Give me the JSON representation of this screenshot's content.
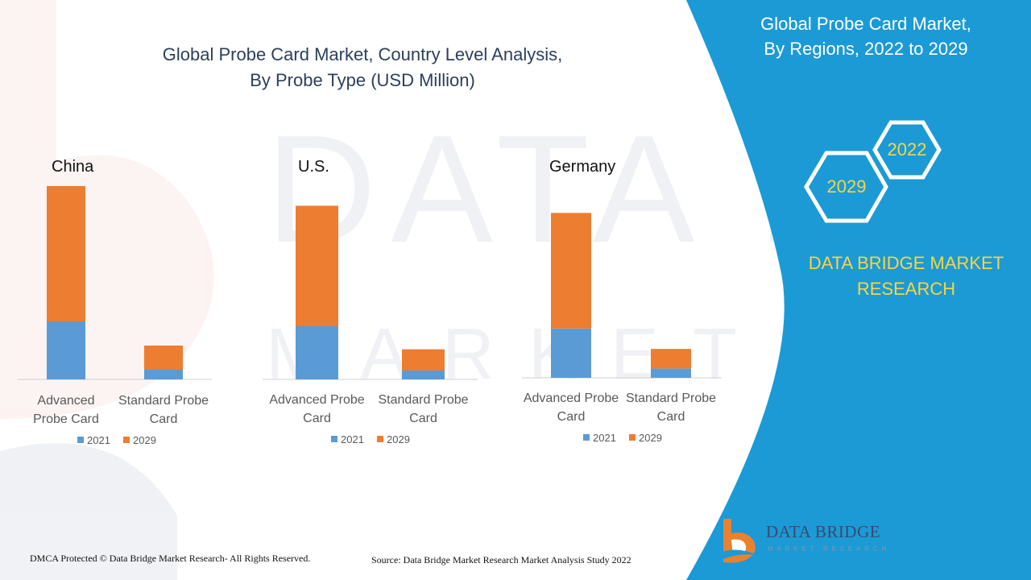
{
  "colors": {
    "series_2021": "#5b9bd5",
    "series_2029": "#ed7d31",
    "panel_blue": "#1b9ad6",
    "accent_yellow": "#f5d547",
    "title_color": "#2b3f5c"
  },
  "main_title": {
    "line1": "Global Probe Card Market, Country Level Analysis,",
    "line2": "By Probe Type (USD Million)"
  },
  "side_panel": {
    "title_line1": "Global Probe Card Market,",
    "title_line2": "By Regions, 2022 to 2029",
    "hex_year_a": "2022",
    "hex_year_b": "2029",
    "brand_line1": "DATA BRIDGE MARKET",
    "brand_line2": "RESEARCH",
    "icons": [
      "hexagon-icon",
      "hexagon-icon"
    ]
  },
  "chart_data": [
    {
      "type": "bar",
      "stacked": true,
      "title": "China",
      "categories": [
        "Advanced Probe Card",
        "Standard Probe Card"
      ],
      "category_lines": [
        [
          "Advanced",
          "Probe Card"
        ],
        [
          "Standard Probe",
          "Card"
        ]
      ],
      "series": [
        {
          "name": "2021",
          "values": [
            30,
            5
          ]
        },
        {
          "name": "2029",
          "values": [
            70,
            12.5
          ]
        }
      ],
      "ylim": [
        0,
        100
      ],
      "legend": "bottom",
      "grid": false
    },
    {
      "type": "bar",
      "stacked": true,
      "title": "U.S.",
      "categories": [
        "Advanced Probe Card",
        "Standard Probe Card"
      ],
      "category_lines": [
        [
          "Advanced Probe",
          "Card"
        ],
        [
          "Standard Probe",
          "Card"
        ]
      ],
      "series": [
        {
          "name": "2021",
          "values": [
            30,
            5
          ]
        },
        {
          "name": "2029",
          "values": [
            68,
            12
          ]
        }
      ],
      "ylim": [
        0,
        100
      ],
      "legend": "bottom",
      "grid": false
    },
    {
      "type": "bar",
      "stacked": true,
      "title": "Germany",
      "categories": [
        "Advanced Probe Card",
        "Standard Probe Card"
      ],
      "category_lines": [
        [
          "Advanced Probe",
          "Card"
        ],
        [
          "Standard Probe",
          "Card"
        ]
      ],
      "series": [
        {
          "name": "2021",
          "values": [
            29,
            5.5
          ]
        },
        {
          "name": "2029",
          "values": [
            68,
            11.5
          ]
        }
      ],
      "ylim": [
        0,
        100
      ],
      "legend": "bottom",
      "grid": false
    }
  ],
  "footer": {
    "copyright": "DMCA Protected © Data Bridge Market Research- All Rights Reserved.",
    "source": "Source: Data Bridge Market Research Market Analysis Study 2022"
  },
  "logo": {
    "name": "DATA BRIDGE",
    "tagline": "MARKET RESEARCH",
    "icon": "data-bridge-logo-icon"
  }
}
